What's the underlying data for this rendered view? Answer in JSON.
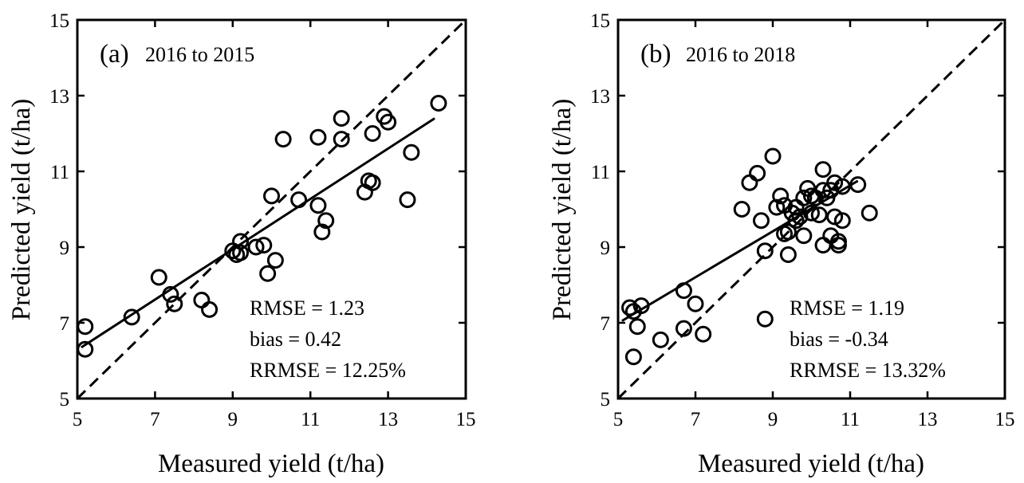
{
  "chart_data": [
    {
      "type": "scatter",
      "panel": "(a)",
      "title": "2016 to 2015",
      "xlabel": "Measured yield (t/ha)",
      "ylabel": "Predicted yield (t/ha)",
      "xlim": [
        5,
        15
      ],
      "ylim": [
        5,
        15
      ],
      "xticks": [
        "5",
        "7",
        "9",
        "11",
        "13",
        "15"
      ],
      "yticks": [
        "5",
        "7",
        "9",
        "11",
        "13",
        "15"
      ],
      "points": [
        [
          5.2,
          6.9
        ],
        [
          5.2,
          6.3
        ],
        [
          6.4,
          7.15
        ],
        [
          7.1,
          8.2
        ],
        [
          7.4,
          7.75
        ],
        [
          7.5,
          7.5
        ],
        [
          8.2,
          7.6
        ],
        [
          8.4,
          7.35
        ],
        [
          9.0,
          8.9
        ],
        [
          9.1,
          8.8
        ],
        [
          9.2,
          9.15
        ],
        [
          9.2,
          8.85
        ],
        [
          9.6,
          9.0
        ],
        [
          9.8,
          9.05
        ],
        [
          9.9,
          8.3
        ],
        [
          10.1,
          8.65
        ],
        [
          10.0,
          10.35
        ],
        [
          10.3,
          11.85
        ],
        [
          10.7,
          10.25
        ],
        [
          11.2,
          11.9
        ],
        [
          11.2,
          10.1
        ],
        [
          11.3,
          9.4
        ],
        [
          11.4,
          9.7
        ],
        [
          11.8,
          11.85
        ],
        [
          11.8,
          12.4
        ],
        [
          12.4,
          10.45
        ],
        [
          12.5,
          10.75
        ],
        [
          12.6,
          10.7
        ],
        [
          12.6,
          12.0
        ],
        [
          12.9,
          12.45
        ],
        [
          13.0,
          12.3
        ],
        [
          13.5,
          10.25
        ],
        [
          13.6,
          11.5
        ],
        [
          14.3,
          12.8
        ]
      ],
      "fit_line": {
        "x": [
          5.1,
          14.2
        ],
        "y": [
          6.35,
          12.4
        ]
      },
      "one_to_one_line": true,
      "stats": [
        "RMSE = 1.23",
        "bias = 0.42",
        "RRMSE = 12.25%"
      ]
    },
    {
      "type": "scatter",
      "panel": "(b)",
      "title": "2016 to 2018",
      "xlabel": "Measured yield (t/ha)",
      "ylabel": "Predicted yield (t/ha)",
      "xlim": [
        5,
        15
      ],
      "ylim": [
        5,
        15
      ],
      "xticks": [
        "5",
        "7",
        "9",
        "11",
        "13",
        "15"
      ],
      "yticks": [
        "5",
        "7",
        "9",
        "11",
        "13",
        "15"
      ],
      "points": [
        [
          5.3,
          7.4
        ],
        [
          5.4,
          7.3
        ],
        [
          5.5,
          6.9
        ],
        [
          5.6,
          7.45
        ],
        [
          5.4,
          6.1
        ],
        [
          6.1,
          6.55
        ],
        [
          6.7,
          7.85
        ],
        [
          6.7,
          6.85
        ],
        [
          7.0,
          7.5
        ],
        [
          7.2,
          6.7
        ],
        [
          8.2,
          10.0
        ],
        [
          8.4,
          10.7
        ],
        [
          8.6,
          10.95
        ],
        [
          8.7,
          9.7
        ],
        [
          8.8,
          8.9
        ],
        [
          8.8,
          7.1
        ],
        [
          9.0,
          11.4
        ],
        [
          9.1,
          10.05
        ],
        [
          9.2,
          10.35
        ],
        [
          9.3,
          9.35
        ],
        [
          9.3,
          10.1
        ],
        [
          9.4,
          9.4
        ],
        [
          9.4,
          8.8
        ],
        [
          9.5,
          9.9
        ],
        [
          9.6,
          9.7
        ],
        [
          9.6,
          10.05
        ],
        [
          9.7,
          9.8
        ],
        [
          9.8,
          10.3
        ],
        [
          9.8,
          9.3
        ],
        [
          9.9,
          10.55
        ],
        [
          10.0,
          10.35
        ],
        [
          10.0,
          9.9
        ],
        [
          10.1,
          10.3
        ],
        [
          10.2,
          9.85
        ],
        [
          10.3,
          11.05
        ],
        [
          10.3,
          10.5
        ],
        [
          10.3,
          9.05
        ],
        [
          10.4,
          10.3
        ],
        [
          10.5,
          10.5
        ],
        [
          10.5,
          9.3
        ],
        [
          10.6,
          10.7
        ],
        [
          10.6,
          9.8
        ],
        [
          10.7,
          9.05
        ],
        [
          10.7,
          9.15
        ],
        [
          10.8,
          10.6
        ],
        [
          10.8,
          9.7
        ],
        [
          11.2,
          10.65
        ],
        [
          11.5,
          9.9
        ]
      ],
      "fit_line": {
        "x": [
          5.1,
          11.2
        ],
        "y": [
          7.05,
          10.75
        ]
      },
      "one_to_one_line": true,
      "stats": [
        "RMSE = 1.19",
        "bias = -0.34",
        "RRMSE = 13.32%"
      ]
    }
  ]
}
